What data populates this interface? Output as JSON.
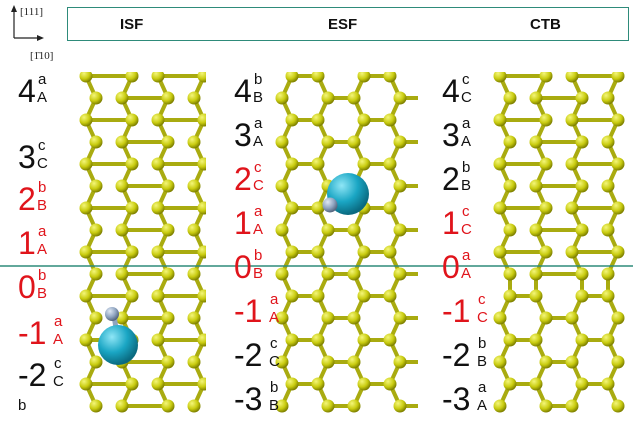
{
  "axes": {
    "up_label": "[111]",
    "right_label": "[1̄10]"
  },
  "columns": [
    {
      "title": "ISF",
      "defect": "interstitial",
      "layers": [
        {
          "n": "4",
          "sup": "a",
          "sub": "A",
          "red": false
        },
        {
          "n": "3",
          "sup": "c",
          "sub": "C",
          "red": false
        },
        {
          "n": "2",
          "sup": "b",
          "sub": "B",
          "red": true
        },
        {
          "n": "1",
          "sup": "a",
          "sub": "A",
          "red": true
        },
        {
          "n": "0",
          "sup": "b",
          "sub": "B",
          "red": true
        },
        {
          "n": "-1",
          "sup": "a",
          "sub": "A",
          "red": true
        },
        {
          "n": "-2",
          "sup": "c",
          "sub": "C",
          "red": false
        },
        {
          "n": "",
          "sup": "b",
          "sub": "",
          "red": false
        }
      ]
    },
    {
      "title": "ESF",
      "defect": "interstitial",
      "layers": [
        {
          "n": "4",
          "sup": "b",
          "sub": "B",
          "red": false
        },
        {
          "n": "3",
          "sup": "a",
          "sub": "A",
          "red": false
        },
        {
          "n": "2",
          "sup": "c",
          "sub": "C",
          "red": true
        },
        {
          "n": "1",
          "sup": "a",
          "sub": "A",
          "red": true
        },
        {
          "n": "0",
          "sup": "b",
          "sub": "B",
          "red": true
        },
        {
          "n": "-1",
          "sup": "a",
          "sub": "A",
          "red": true
        },
        {
          "n": "-2",
          "sup": "c",
          "sub": "C",
          "red": false
        },
        {
          "n": "-3",
          "sup": "b",
          "sub": "B",
          "red": false
        }
      ]
    },
    {
      "title": "CTB",
      "defect": "none",
      "layers": [
        {
          "n": "4",
          "sup": "c",
          "sub": "C",
          "red": false
        },
        {
          "n": "3",
          "sup": "a",
          "sub": "A",
          "red": false
        },
        {
          "n": "2",
          "sup": "b",
          "sub": "B",
          "red": false
        },
        {
          "n": "1",
          "sup": "c",
          "sub": "C",
          "red": true
        },
        {
          "n": "0",
          "sup": "a",
          "sub": "A",
          "red": true
        },
        {
          "n": "-1",
          "sup": "c",
          "sub": "C",
          "red": true
        },
        {
          "n": "-2",
          "sup": "b",
          "sub": "B",
          "red": false
        },
        {
          "n": "-3",
          "sup": "a",
          "sub": "A",
          "red": false
        }
      ]
    }
  ],
  "colors": {
    "atom": "#b5b800",
    "atom_light": "#eef05a",
    "bond": "#a9ab10",
    "defect_big": "#1aa6c4",
    "defect_small": "#8fa4c0",
    "divider": "#2e8b7a",
    "red": "#e0141b"
  }
}
